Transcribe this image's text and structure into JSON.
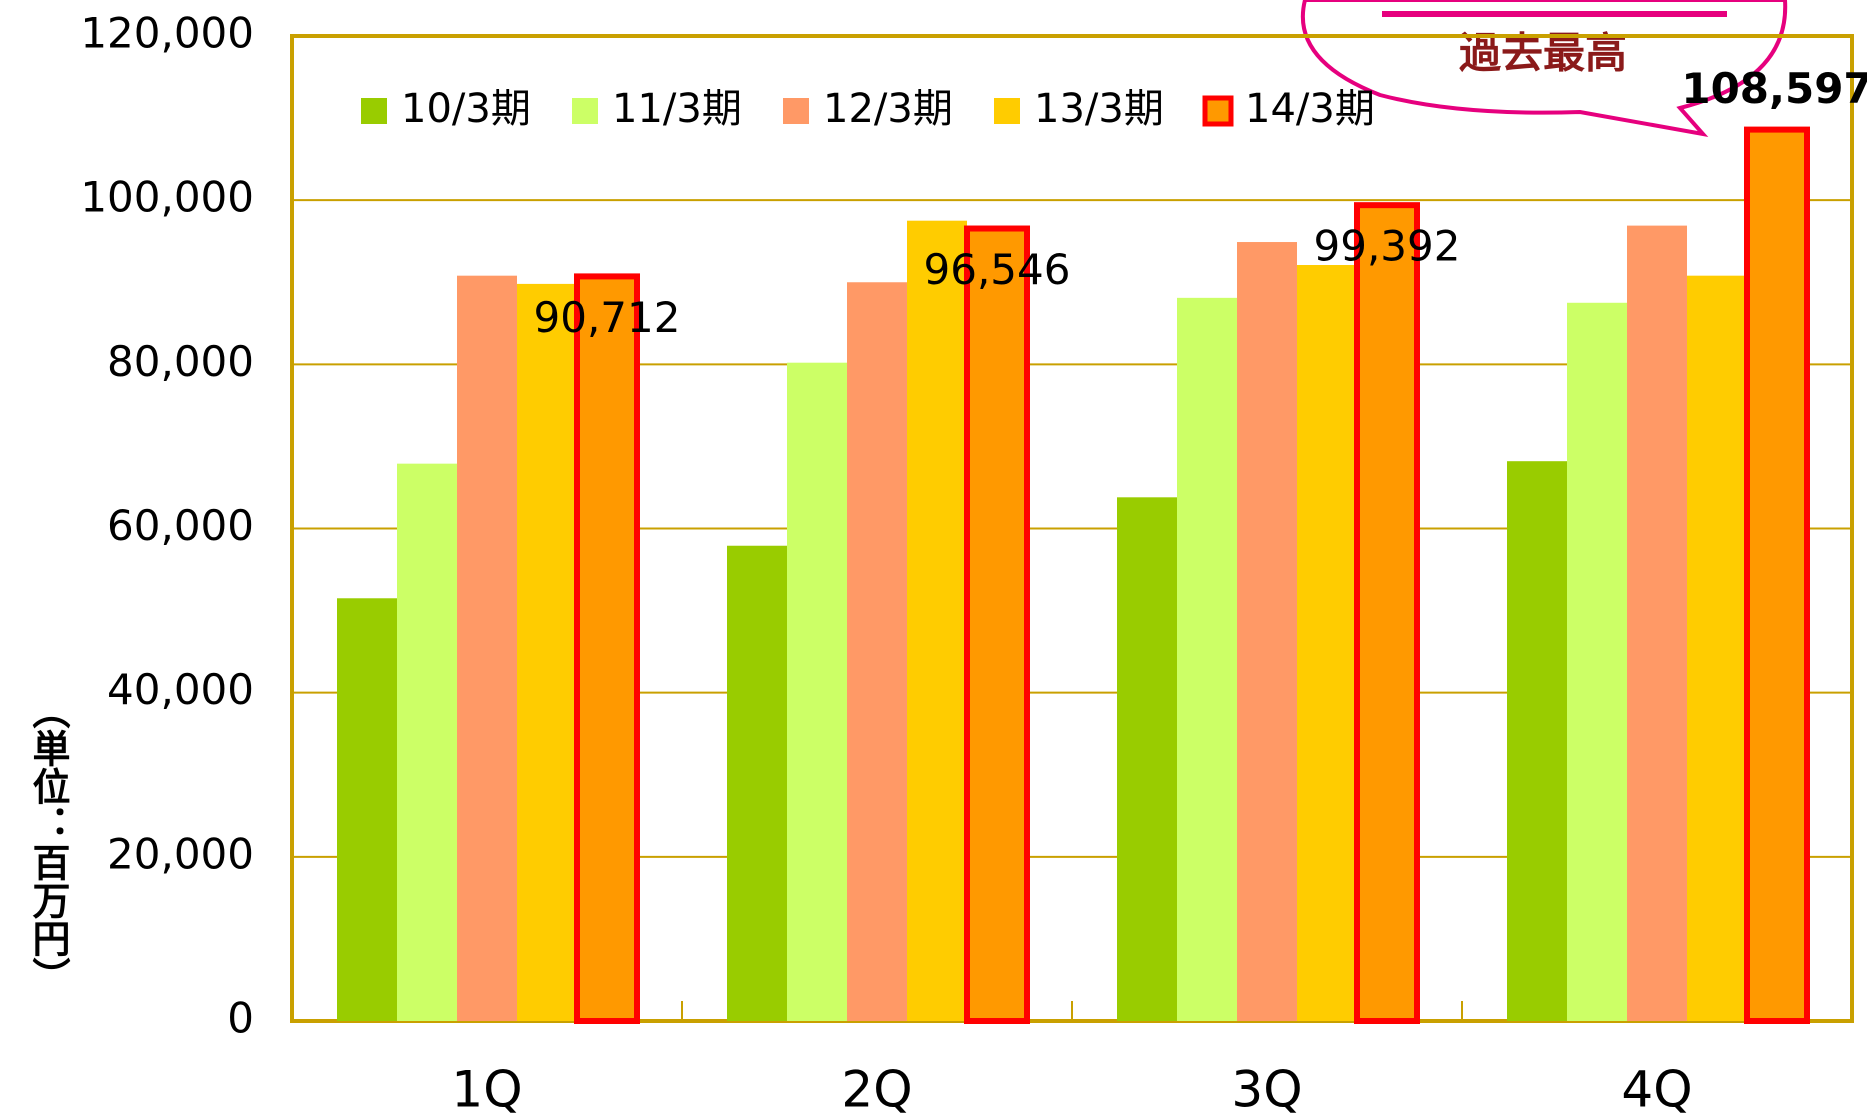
{
  "chart_data": {
    "type": "bar",
    "categories": [
      "1Q",
      "2Q",
      "3Q",
      "4Q"
    ],
    "series": [
      {
        "name": "10/3期",
        "color": "#99cc00",
        "values": [
          51500,
          57900,
          63800,
          68200
        ]
      },
      {
        "name": "11/3期",
        "color": "#ccff66",
        "values": [
          67900,
          80200,
          88100,
          87500
        ]
      },
      {
        "name": "12/3期",
        "color": "#ff9966",
        "values": [
          90800,
          90000,
          94900,
          96900
        ]
      },
      {
        "name": "13/3期",
        "color": "#ffcc00",
        "values": [
          89800,
          97500,
          92100,
          90800
        ]
      },
      {
        "name": "14/3期",
        "color": "#ff9900",
        "border_color": "#ff0000",
        "values": [
          90712,
          96546,
          99392,
          108597
        ],
        "value_labels": [
          "90,712",
          "96,546",
          "99,392",
          "108,597"
        ]
      }
    ],
    "ylim": [
      0,
      120000
    ],
    "yticks": [
      0,
      {
        "value": 20000,
        "label": "20,000"
      },
      {
        "value": 40000,
        "label": "40,000"
      },
      {
        "value": 60000,
        "label": "60,000"
      },
      {
        "value": 80000,
        "label": "80,000"
      },
      {
        "value": 100000,
        "label": "100,000"
      },
      {
        "value": 120000,
        "label": "120,000"
      }
    ],
    "y_axis_label": "（単位：百万円）",
    "annotation": "過去最高",
    "grid": true,
    "legend": "top"
  }
}
